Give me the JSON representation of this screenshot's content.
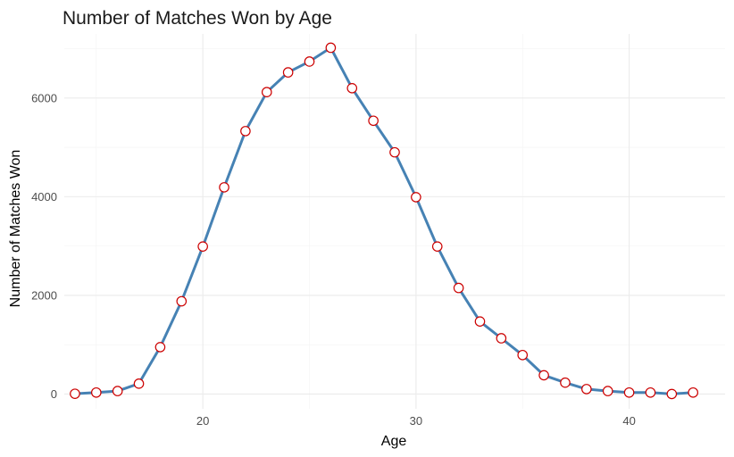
{
  "chart_data": {
    "type": "line",
    "title": "Number of Matches Won by Age",
    "xlabel": "Age",
    "ylabel": "Number of Matches Won",
    "xlim": [
      13.5,
      44.5
    ],
    "ylim": [
      -300,
      7300
    ],
    "xticks": [
      20,
      30,
      40
    ],
    "yticks": [
      0,
      2000,
      4000,
      6000
    ],
    "grid": true,
    "legend": "none",
    "colors": {
      "line": "#4682b4",
      "marker_edge": "#cc0000",
      "marker_fill": "#ffffff"
    },
    "x": [
      14,
      15,
      16,
      17,
      18,
      19,
      20,
      21,
      22,
      23,
      24,
      25,
      26,
      27,
      28,
      29,
      30,
      31,
      32,
      33,
      34,
      35,
      36,
      37,
      38,
      39,
      40,
      41,
      42,
      43
    ],
    "y": [
      5,
      30,
      60,
      210,
      950,
      1880,
      2990,
      4190,
      5330,
      6120,
      6520,
      6740,
      7020,
      6200,
      5540,
      4900,
      3990,
      2990,
      2150,
      1470,
      1130,
      790,
      380,
      230,
      100,
      60,
      30,
      30,
      0,
      30
    ]
  }
}
